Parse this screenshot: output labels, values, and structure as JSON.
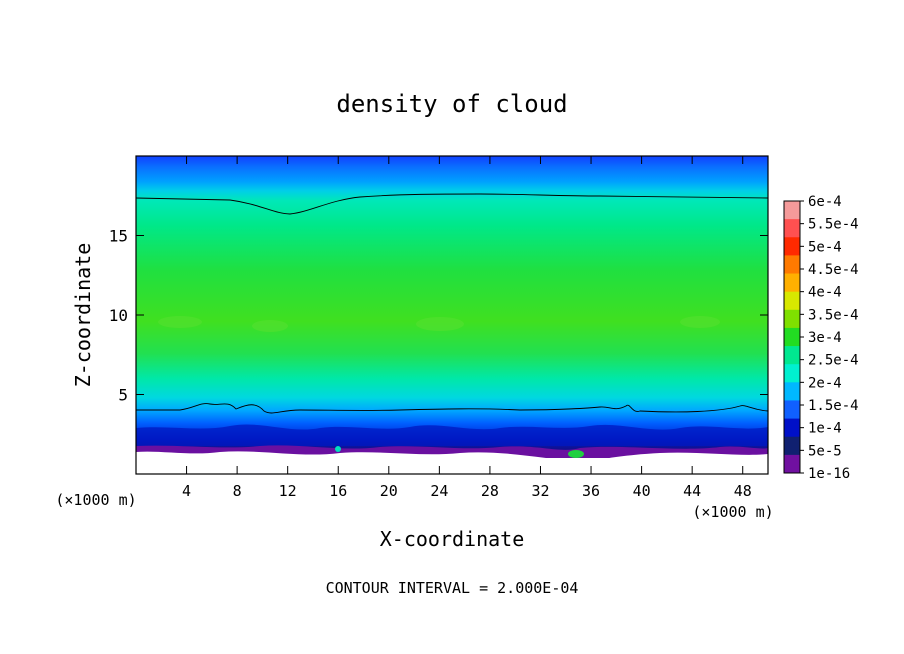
{
  "chart_data": {
    "type": "heatmap",
    "title": "density of cloud",
    "xlabel": "X-coordinate",
    "ylabel": "Z-coordinate",
    "x_unit_left": "(×1000 m)",
    "x_unit_right": "(×1000 m)",
    "footer": "CONTOUR INTERVAL = 2.000E-04",
    "xlim": [
      0,
      50
    ],
    "ylim": [
      0,
      20
    ],
    "x_ticks": [
      4,
      8,
      12,
      16,
      20,
      24,
      28,
      32,
      36,
      40,
      44,
      48
    ],
    "y_ticks": [
      5,
      10,
      15
    ],
    "colorbar": {
      "labels": [
        "6e-4",
        "5.5e-4",
        "5e-4",
        "4.5e-4",
        "4e-4",
        "3.5e-4",
        "3e-4",
        "2.5e-4",
        "2e-4",
        "1.5e-4",
        "1e-4",
        "5e-5",
        "1e-16"
      ],
      "colors": [
        "#f59a9a",
        "#ff5050",
        "#ff2a00",
        "#ff7a00",
        "#ffb000",
        "#d8e800",
        "#7fe000",
        "#22dd22",
        "#00e890",
        "#00f0d0",
        "#00b8ff",
        "#1060ff",
        "#0010c8",
        "#102070",
        "#7010a0"
      ]
    },
    "contour_levels_drawn": [
      0.0002
    ],
    "fields": {
      "top_boundary_height": 17.3,
      "mid_cloud_layer": "2.5e-4",
      "cloud_base_height": 4.0
    }
  }
}
